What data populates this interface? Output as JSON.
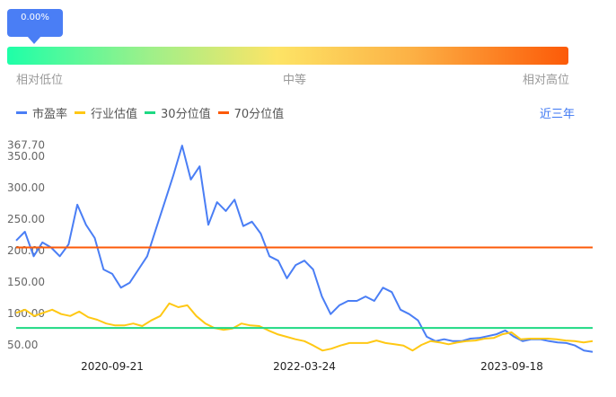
{
  "indicator": {
    "percentile": "0.00%",
    "percentile_value": 0,
    "low_label": "相对低位",
    "mid_label": "中等",
    "high_label": "相对高位"
  },
  "legend": [
    {
      "label": "市盈率",
      "color": "#4a7ef5"
    },
    {
      "label": "行业估值",
      "color": "#ffc814"
    },
    {
      "label": "30分位值",
      "color": "#1ed983"
    },
    {
      "label": "70分位值",
      "color": "#fc5a08"
    }
  ],
  "range_button": "近三年",
  "chart_data": {
    "type": "line",
    "y_ticks": [
      "367.70",
      "350.00",
      "300.00",
      "250.00",
      "200.00",
      "150.00",
      "100.00",
      "50.00"
    ],
    "y_tick_values": [
      367.7,
      350,
      300,
      250,
      200,
      150,
      100,
      50
    ],
    "x_ticks": [
      "2020-09-21",
      "2022-03-24",
      "2023-09-18"
    ],
    "grid": false,
    "series": [
      {
        "name": "市盈率",
        "color": "#4a7ef5",
        "values": [
          216,
          230,
          191,
          213,
          205,
          191,
          210,
          273,
          241,
          220,
          170,
          163,
          141,
          149,
          170,
          191,
          234,
          277,
          320,
          367,
          313,
          334,
          241,
          277,
          263,
          281,
          239,
          246,
          227,
          191,
          184,
          156,
          177,
          184,
          170,
          127,
          99,
          113,
          120,
          120,
          127,
          120,
          141,
          134,
          106,
          99,
          89,
          63,
          56,
          59,
          56,
          56,
          60,
          61,
          64,
          67,
          73,
          63,
          56,
          59,
          59,
          56,
          54,
          53,
          49,
          41,
          39
        ]
      },
      {
        "name": "行业估值",
        "color": "#ffc814",
        "values": [
          101,
          106,
          96,
          101,
          106,
          99,
          96,
          103,
          94,
          90,
          84,
          81,
          81,
          84,
          80,
          89,
          96,
          116,
          110,
          113,
          96,
          84,
          77,
          74,
          76,
          84,
          81,
          80,
          73,
          67,
          63,
          59,
          56,
          49,
          41,
          44,
          49,
          53,
          53,
          53,
          57,
          53,
          51,
          49,
          41,
          50,
          56,
          54,
          51,
          54,
          56,
          57,
          60,
          61,
          67,
          70,
          59,
          60,
          60,
          60,
          59,
          57,
          56,
          54,
          56
        ]
      },
      {
        "name": "30分位值",
        "color": "#1ed983",
        "constant": 77
      },
      {
        "name": "70分位值",
        "color": "#fc5a08",
        "constant": 205
      }
    ]
  }
}
